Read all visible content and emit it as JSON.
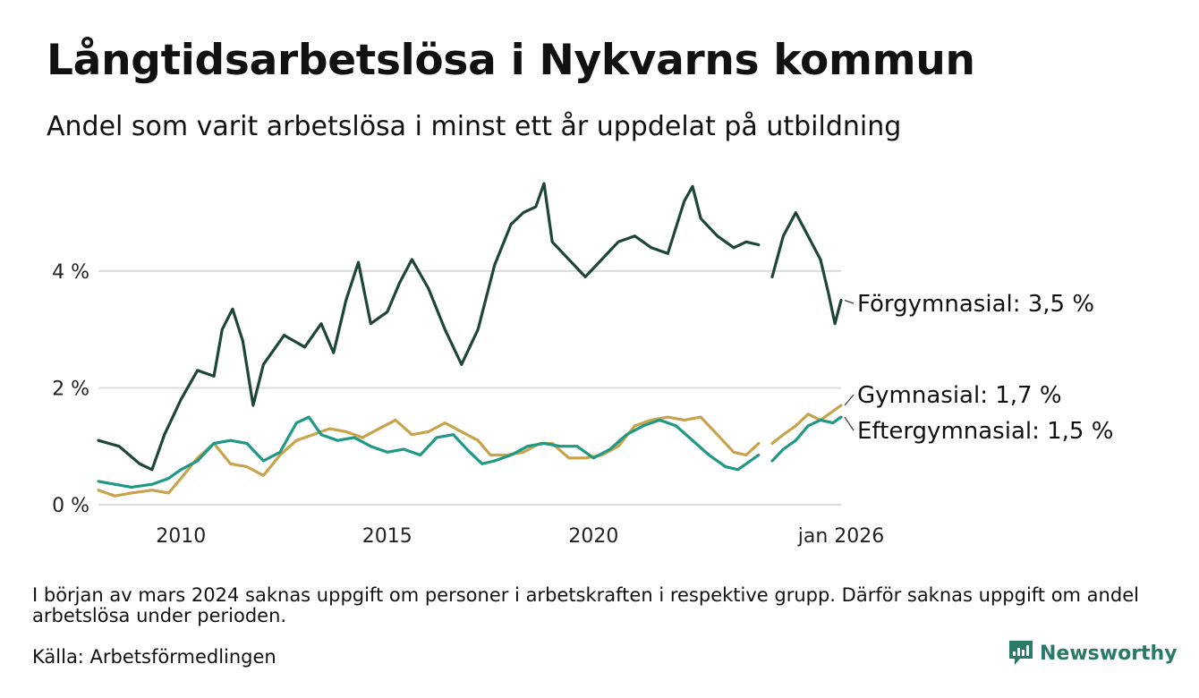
{
  "title": "Långtidsarbetslösa i Nykvarns kommun",
  "subtitle": "Andel som varit arbetslösa i minst ett år uppdelat på utbildning",
  "note": "I början av mars 2024 saknas uppgift om personer i arbetskraften i respektive grupp. Därför saknas uppgift om andel arbetslösa under perioden.",
  "source": "Källa: Arbetsförmedlingen",
  "brand": "Newsworthy",
  "colors": {
    "forgymnasial": "#1d4636",
    "gymnasial": "#c9a24c",
    "eftergymnasial": "#1f9885",
    "grid": "#dcdcdc",
    "brand": "#2a7a6a"
  },
  "chart_data": {
    "type": "line",
    "title": "Långtidsarbetslösa i Nykvarns kommun",
    "xlabel": "",
    "ylabel": "",
    "xlim": [
      2008.0,
      2026.0
    ],
    "ylim": [
      0,
      5.5
    ],
    "x_ticks": [
      {
        "value": 2010,
        "label": "2010"
      },
      {
        "value": 2015,
        "label": "2015"
      },
      {
        "value": 2020,
        "label": "2020"
      },
      {
        "value": 2026.0,
        "label": "jan 2026"
      }
    ],
    "y_ticks": [
      {
        "value": 0,
        "label": "0 %"
      },
      {
        "value": 2,
        "label": "2 %"
      },
      {
        "value": 4,
        "label": "4 %"
      }
    ],
    "grid": true,
    "gap": [
      2024.0,
      2024.33
    ],
    "series": [
      {
        "key": "forgymnasial",
        "name": "Förgymnasial",
        "end_label": "Förgymnasial: 3,5 %",
        "points": [
          [
            2008.0,
            1.1
          ],
          [
            2008.5,
            1.0
          ],
          [
            2009.0,
            0.7
          ],
          [
            2009.3,
            0.6
          ],
          [
            2009.6,
            1.2
          ],
          [
            2010.0,
            1.8
          ],
          [
            2010.4,
            2.3
          ],
          [
            2010.8,
            2.2
          ],
          [
            2011.0,
            3.0
          ],
          [
            2011.25,
            3.35
          ],
          [
            2011.5,
            2.8
          ],
          [
            2011.75,
            1.7
          ],
          [
            2012.0,
            2.4
          ],
          [
            2012.5,
            2.9
          ],
          [
            2013.0,
            2.7
          ],
          [
            2013.4,
            3.1
          ],
          [
            2013.7,
            2.6
          ],
          [
            2014.0,
            3.5
          ],
          [
            2014.3,
            4.15
          ],
          [
            2014.6,
            3.1
          ],
          [
            2015.0,
            3.3
          ],
          [
            2015.3,
            3.8
          ],
          [
            2015.6,
            4.2
          ],
          [
            2016.0,
            3.7
          ],
          [
            2016.4,
            3.0
          ],
          [
            2016.8,
            2.4
          ],
          [
            2017.2,
            3.0
          ],
          [
            2017.6,
            4.1
          ],
          [
            2018.0,
            4.8
          ],
          [
            2018.3,
            5.0
          ],
          [
            2018.6,
            5.1
          ],
          [
            2018.8,
            5.5
          ],
          [
            2019.0,
            4.5
          ],
          [
            2019.4,
            4.2
          ],
          [
            2019.8,
            3.9
          ],
          [
            2020.2,
            4.2
          ],
          [
            2020.6,
            4.5
          ],
          [
            2021.0,
            4.6
          ],
          [
            2021.4,
            4.4
          ],
          [
            2021.8,
            4.3
          ],
          [
            2022.2,
            5.2
          ],
          [
            2022.4,
            5.45
          ],
          [
            2022.6,
            4.9
          ],
          [
            2023.0,
            4.6
          ],
          [
            2023.4,
            4.4
          ],
          [
            2023.7,
            4.5
          ],
          [
            2024.0,
            4.45
          ],
          [
            2024.33,
            3.9
          ],
          [
            2024.6,
            4.6
          ],
          [
            2024.9,
            5.0
          ],
          [
            2025.2,
            4.6
          ],
          [
            2025.5,
            4.2
          ],
          [
            2025.7,
            3.6
          ],
          [
            2025.85,
            3.1
          ],
          [
            2026.0,
            3.5
          ]
        ]
      },
      {
        "key": "gymnasial",
        "name": "Gymnasial",
        "end_label": "Gymnasial: 1,7 %",
        "points": [
          [
            2008.0,
            0.25
          ],
          [
            2008.4,
            0.15
          ],
          [
            2008.8,
            0.2
          ],
          [
            2009.3,
            0.25
          ],
          [
            2009.7,
            0.2
          ],
          [
            2010.0,
            0.45
          ],
          [
            2010.4,
            0.8
          ],
          [
            2010.8,
            1.05
          ],
          [
            2011.2,
            0.7
          ],
          [
            2011.6,
            0.65
          ],
          [
            2012.0,
            0.5
          ],
          [
            2012.4,
            0.85
          ],
          [
            2012.8,
            1.1
          ],
          [
            2013.2,
            1.2
          ],
          [
            2013.6,
            1.3
          ],
          [
            2014.0,
            1.25
          ],
          [
            2014.4,
            1.15
          ],
          [
            2014.8,
            1.3
          ],
          [
            2015.2,
            1.45
          ],
          [
            2015.6,
            1.2
          ],
          [
            2016.0,
            1.25
          ],
          [
            2016.4,
            1.4
          ],
          [
            2016.8,
            1.25
          ],
          [
            2017.2,
            1.1
          ],
          [
            2017.5,
            0.85
          ],
          [
            2017.9,
            0.85
          ],
          [
            2018.3,
            0.9
          ],
          [
            2018.7,
            1.05
          ],
          [
            2019.0,
            1.05
          ],
          [
            2019.4,
            0.8
          ],
          [
            2019.8,
            0.8
          ],
          [
            2020.2,
            0.85
          ],
          [
            2020.6,
            1.0
          ],
          [
            2021.0,
            1.35
          ],
          [
            2021.4,
            1.45
          ],
          [
            2021.8,
            1.5
          ],
          [
            2022.2,
            1.45
          ],
          [
            2022.6,
            1.5
          ],
          [
            2023.0,
            1.2
          ],
          [
            2023.4,
            0.9
          ],
          [
            2023.7,
            0.85
          ],
          [
            2024.0,
            1.05
          ],
          [
            2024.33,
            1.05
          ],
          [
            2024.6,
            1.2
          ],
          [
            2024.9,
            1.35
          ],
          [
            2025.2,
            1.55
          ],
          [
            2025.5,
            1.45
          ],
          [
            2025.8,
            1.6
          ],
          [
            2026.0,
            1.7
          ]
        ]
      },
      {
        "key": "eftergymnasial",
        "name": "Eftergymnasial",
        "end_label": "Eftergymnasial: 1,5 %",
        "points": [
          [
            2008.0,
            0.4
          ],
          [
            2008.4,
            0.35
          ],
          [
            2008.8,
            0.3
          ],
          [
            2009.3,
            0.35
          ],
          [
            2009.7,
            0.45
          ],
          [
            2010.0,
            0.6
          ],
          [
            2010.4,
            0.75
          ],
          [
            2010.8,
            1.05
          ],
          [
            2011.2,
            1.1
          ],
          [
            2011.6,
            1.05
          ],
          [
            2012.0,
            0.75
          ],
          [
            2012.4,
            0.9
          ],
          [
            2012.8,
            1.4
          ],
          [
            2013.1,
            1.5
          ],
          [
            2013.4,
            1.2
          ],
          [
            2013.8,
            1.1
          ],
          [
            2014.2,
            1.15
          ],
          [
            2014.6,
            1.0
          ],
          [
            2015.0,
            0.9
          ],
          [
            2015.4,
            0.95
          ],
          [
            2015.8,
            0.85
          ],
          [
            2016.2,
            1.15
          ],
          [
            2016.6,
            1.2
          ],
          [
            2017.0,
            0.9
          ],
          [
            2017.3,
            0.7
          ],
          [
            2017.6,
            0.75
          ],
          [
            2018.0,
            0.85
          ],
          [
            2018.4,
            1.0
          ],
          [
            2018.8,
            1.05
          ],
          [
            2019.2,
            1.0
          ],
          [
            2019.6,
            1.0
          ],
          [
            2020.0,
            0.8
          ],
          [
            2020.4,
            0.95
          ],
          [
            2020.8,
            1.2
          ],
          [
            2021.2,
            1.35
          ],
          [
            2021.6,
            1.45
          ],
          [
            2022.0,
            1.35
          ],
          [
            2022.4,
            1.1
          ],
          [
            2022.8,
            0.85
          ],
          [
            2023.2,
            0.65
          ],
          [
            2023.5,
            0.6
          ],
          [
            2023.8,
            0.75
          ],
          [
            2024.0,
            0.85
          ],
          [
            2024.33,
            0.75
          ],
          [
            2024.6,
            0.95
          ],
          [
            2024.9,
            1.1
          ],
          [
            2025.2,
            1.35
          ],
          [
            2025.5,
            1.45
          ],
          [
            2025.8,
            1.4
          ],
          [
            2026.0,
            1.5
          ]
        ]
      }
    ]
  }
}
